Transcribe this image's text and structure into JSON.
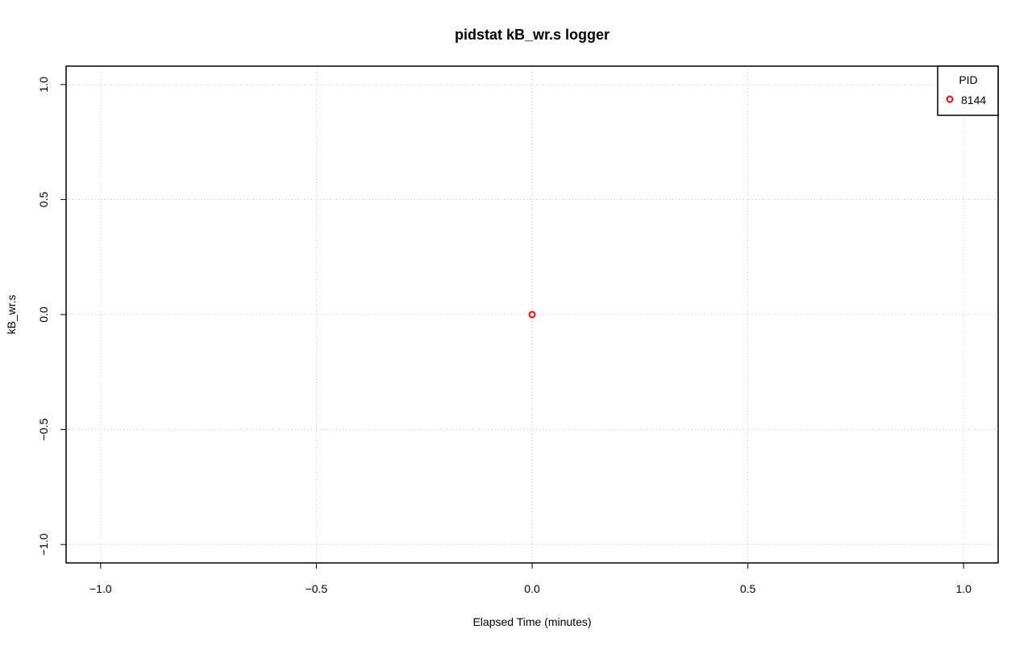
{
  "chart_data": {
    "type": "scatter",
    "title": "pidstat kB_wr.s logger",
    "xlabel": "Elapsed Time (minutes)",
    "ylabel": "kB_wr.s",
    "xlim": [
      -1.08,
      1.08
    ],
    "ylim": [
      -1.08,
      1.08
    ],
    "xticks": [
      -1.0,
      -0.5,
      0.0,
      0.5,
      1.0
    ],
    "xtick_labels": [
      "−1.0",
      "−0.5",
      "0.0",
      "0.5",
      "1.0"
    ],
    "yticks": [
      -1.0,
      -0.5,
      0.0,
      0.5,
      1.0
    ],
    "ytick_labels": [
      "−1.0",
      "−0.5",
      "0.0",
      "0.5",
      "1.0"
    ],
    "grid": true,
    "legend": {
      "title": "PID",
      "placement": "top-right"
    },
    "series": [
      {
        "name": "8144",
        "color": "#ff0000",
        "x": [
          0.0
        ],
        "y": [
          0.0
        ]
      }
    ]
  }
}
